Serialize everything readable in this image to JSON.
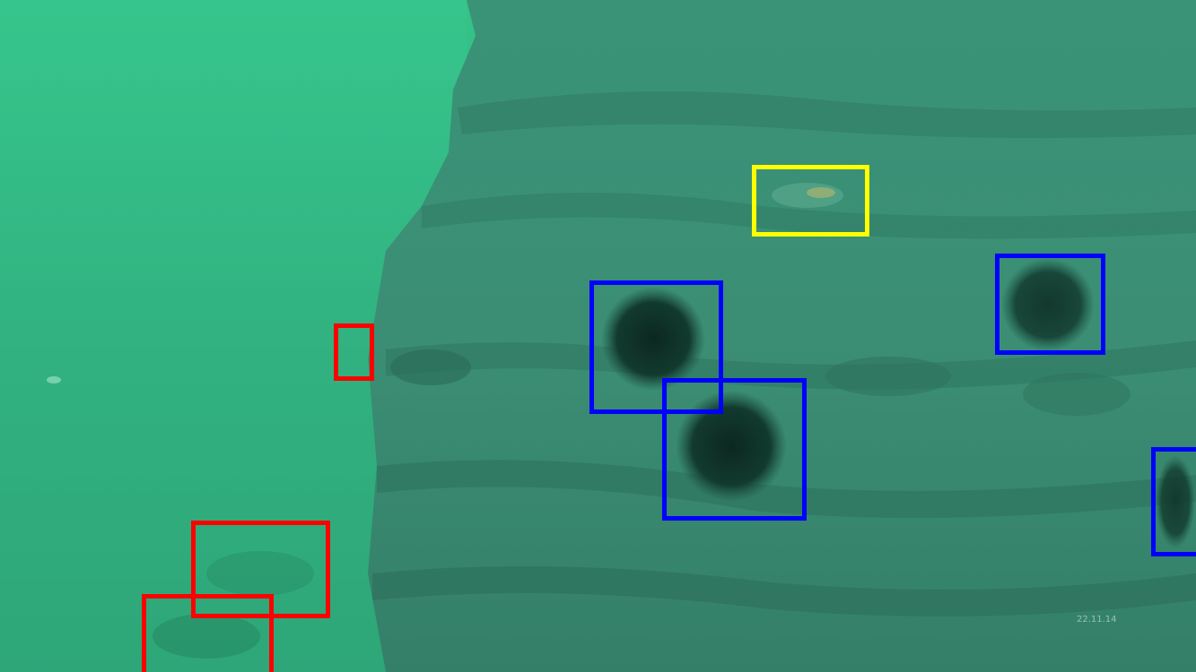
{
  "scene": {
    "description_colors": {
      "water": "#2fb27e",
      "rock": "#3f8a72",
      "rock_dark": "#2c6b58",
      "urchin": "#0f2f26"
    }
  },
  "annotations": {
    "classes": {
      "urchin": {
        "color": "#0000ff"
      },
      "fish": {
        "color": "#ffff00"
      },
      "other": {
        "color": "#ff0000"
      }
    }
  },
  "watermark": "22.11.14"
}
